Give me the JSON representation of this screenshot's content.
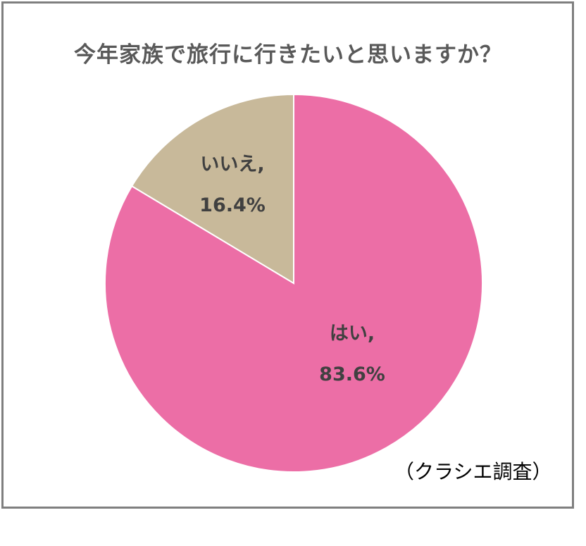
{
  "title": "今年家族で旅行に行きたいと思いますか？",
  "source_note": "（クラシエ調査）",
  "chart_data": {
    "type": "pie",
    "title": "今年家族で旅行に行きたいと思いますか？",
    "start_angle": "12 o'clock",
    "direction": "clockwise",
    "slices": [
      {
        "label": "はい,",
        "percent_label": "83.6%",
        "value": 83.6,
        "color": "#EC6EA6"
      },
      {
        "label": "いいえ,",
        "percent_label": "16.4%",
        "value": 16.4,
        "color": "#C8B99A"
      }
    ],
    "legend": "none"
  }
}
